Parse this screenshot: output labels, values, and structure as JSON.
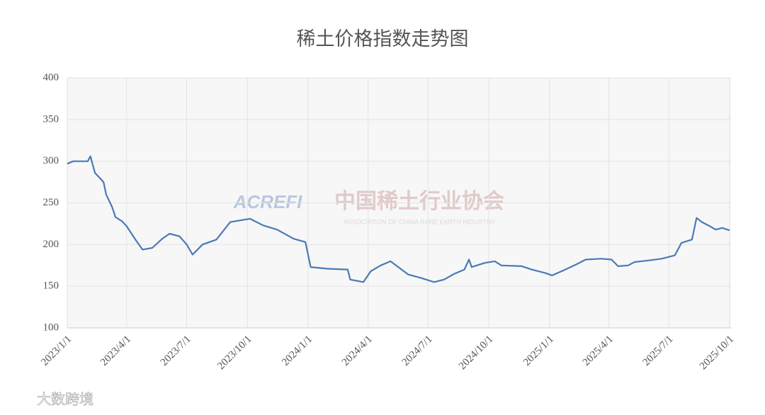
{
  "chart_data": {
    "type": "line",
    "title": "稀土价格指数走势图",
    "x": [
      "2023/1/1",
      "2023/1/10",
      "2023/2/1",
      "2023/2/5",
      "2023/2/12",
      "2023/2/25",
      "2023/3/1",
      "2023/3/10",
      "2023/3/15",
      "2023/3/25",
      "2023/4/1",
      "2023/4/15",
      "2023/4/25",
      "2023/5/10",
      "2023/5/25",
      "2023/6/5",
      "2023/6/20",
      "2023/7/1",
      "2023/7/10",
      "2023/7/25",
      "2023/8/15",
      "2023/9/5",
      "2023/9/20",
      "2023/10/5",
      "2023/10/25",
      "2023/11/15",
      "2023/12/10",
      "2023/12/28",
      "2024/1/5",
      "2024/1/31",
      "2024/3/1",
      "2024/3/5",
      "2024/3/25",
      "2024/4/5",
      "2024/4/20",
      "2024/5/5",
      "2024/5/15",
      "2024/6/1",
      "2024/6/20",
      "2024/7/10",
      "2024/7/25",
      "2024/8/10",
      "2024/8/25",
      "2024/9/1",
      "2024/9/5",
      "2024/9/25",
      "2024/10/10",
      "2024/10/20",
      "2024/11/20",
      "2024/12/5",
      "2024/12/25",
      "2025/1/5",
      "2025/1/25",
      "2025/2/10",
      "2025/2/25",
      "2025/3/20",
      "2025/4/5",
      "2025/4/15",
      "2025/4/30",
      "2025/5/10",
      "2025/6/1",
      "2025/6/20",
      "2025/7/10",
      "2025/7/20",
      "2025/8/5",
      "2025/8/12",
      "2025/8/20",
      "2025/9/1",
      "2025/9/10",
      "2025/9/20",
      "2025/10/1"
    ],
    "series": [
      {
        "color": "#4a7ab5",
        "values": [
          297,
          300,
          300,
          306,
          286,
          275,
          260,
          245,
          233,
          228,
          222,
          205,
          194,
          196,
          207,
          213,
          210,
          200,
          188,
          200,
          206,
          227,
          229,
          231,
          223,
          218,
          207,
          203,
          173,
          171,
          170,
          158,
          155,
          168,
          175,
          180,
          174,
          164,
          160,
          155,
          158,
          165,
          170,
          182,
          173,
          178,
          180,
          175,
          174,
          170,
          166,
          163,
          170,
          176,
          182,
          183,
          182,
          174,
          175,
          179,
          181,
          183,
          187,
          202,
          206,
          232,
          227,
          222,
          218,
          220,
          217
        ]
      }
    ],
    "xlim": [
      "2023/1/1",
      "2025/10/1"
    ],
    "xticks": [
      "2023/1/1",
      "2023/4/1",
      "2023/7/1",
      "2023/10/1",
      "2024/1/1",
      "2024/4/1",
      "2024/7/1",
      "2024/10/1",
      "2025/1/1",
      "2025/4/1",
      "2025/7/1",
      "2025/10/1"
    ],
    "ylim": [
      100,
      400
    ],
    "yticks": [
      100,
      150,
      200,
      250,
      300,
      350,
      400
    ],
    "grid": true,
    "annotations": [
      "ACREFI",
      "中国稀土行业协会",
      "ASSOCIATION OF CHINA RARE EARTH INDUSTRY",
      "大数跨境"
    ]
  }
}
